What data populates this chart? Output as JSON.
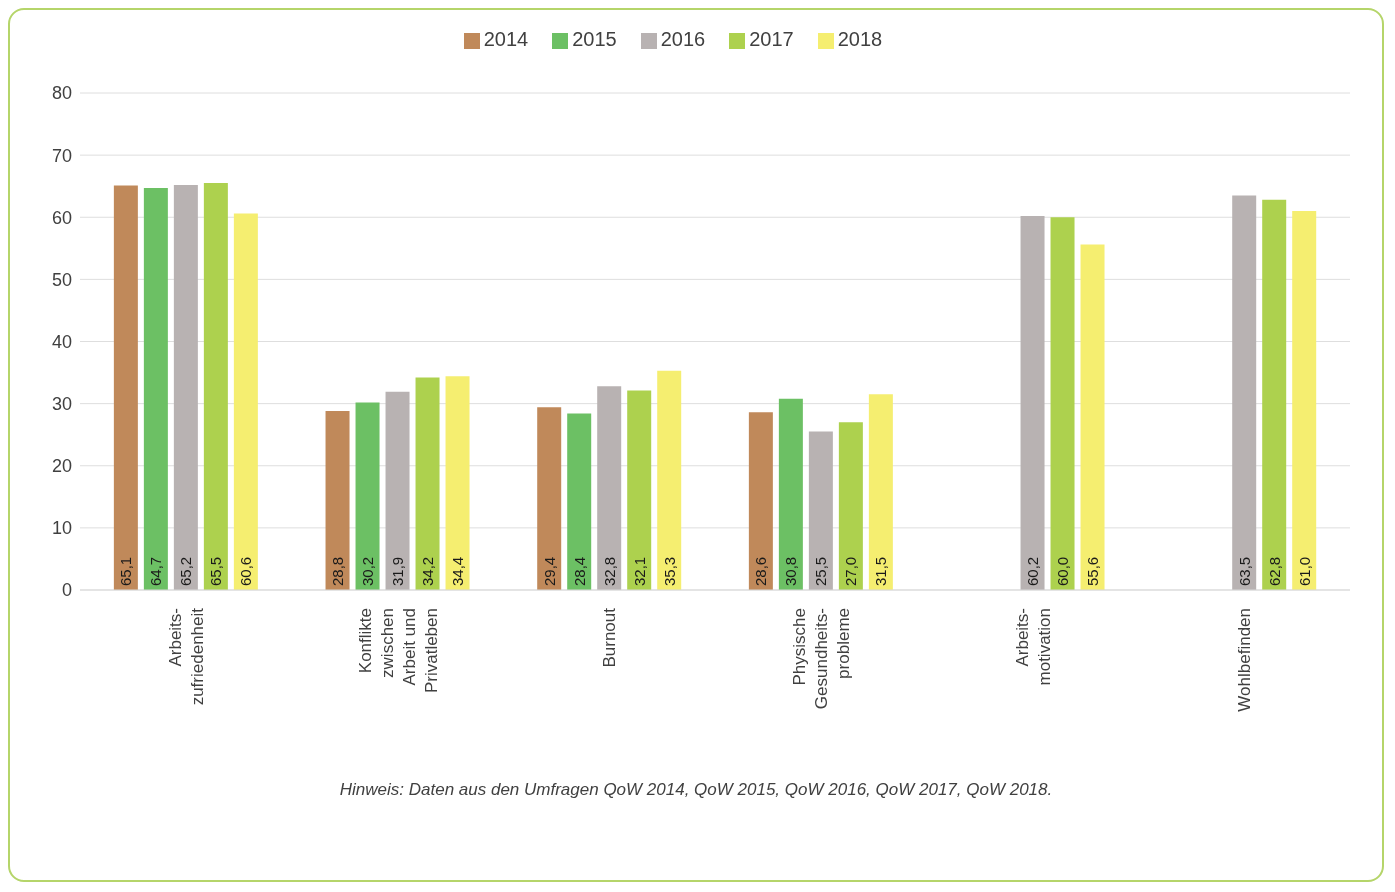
{
  "chart_data": {
    "type": "bar",
    "categories": [
      "Arbeits-\nzufriedenheit",
      "Konflikte\nzwischen\nArbeit und\nPrivatleben",
      "Burnout",
      "Physische\nGesundheits-\nprobleme",
      "Arbeits-\nmotivation",
      "Wohlbefinden"
    ],
    "series": [
      {
        "name": "2014",
        "color": "#c0895a",
        "values": [
          65.1,
          28.8,
          29.4,
          28.6,
          null,
          null
        ],
        "value_labels": [
          "65,1",
          "28,8",
          "29,4",
          "28,6",
          null,
          null
        ]
      },
      {
        "name": "2015",
        "color": "#6cc064",
        "values": [
          64.7,
          30.2,
          28.4,
          30.8,
          null,
          null
        ],
        "value_labels": [
          "64,7",
          "30,2",
          "28,4",
          "30,8",
          null,
          null
        ]
      },
      {
        "name": "2016",
        "color": "#b8b2b2",
        "values": [
          65.2,
          31.9,
          32.8,
          25.5,
          60.2,
          63.5
        ],
        "value_labels": [
          "65,2",
          "31,9",
          "32,8",
          "25,5",
          "60,2",
          "63,5"
        ]
      },
      {
        "name": "2017",
        "color": "#add14e",
        "values": [
          65.5,
          34.2,
          32.1,
          27.0,
          60.0,
          62.8
        ],
        "value_labels": [
          "65,5",
          "34,2",
          "32,1",
          "27,0",
          "60,0",
          "62,8"
        ]
      },
      {
        "name": "2018",
        "color": "#f5ee70",
        "values": [
          60.6,
          34.4,
          35.3,
          31.5,
          55.6,
          61.0
        ],
        "value_labels": [
          "60,6",
          "34,4",
          "35,3",
          "31,5",
          "55,6",
          "61,0"
        ]
      }
    ],
    "ylim": [
      0,
      80
    ],
    "yticks": [
      0,
      10,
      20,
      30,
      40,
      50,
      60,
      70,
      80
    ],
    "grid": "y",
    "legend": "top",
    "annotations": [
      "Hinweis: Daten aus den Umfragen QoW 2014, QoW 2015, QoW 2016, QoW 2017, QoW 2018."
    ]
  }
}
